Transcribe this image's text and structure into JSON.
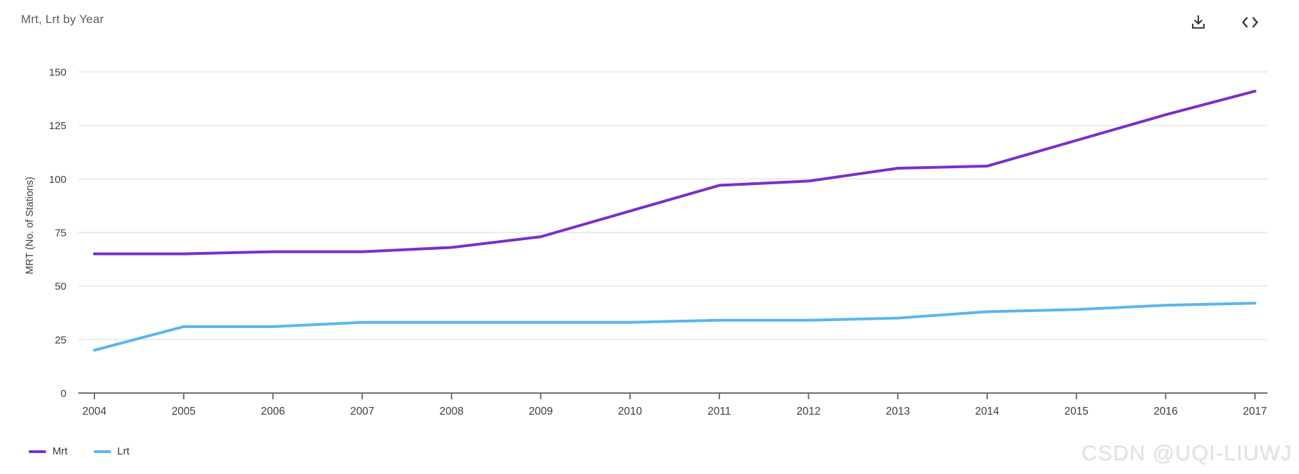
{
  "header": {
    "title": "Mrt, Lrt by Year",
    "download_icon": "download-icon",
    "embed_icon": "embed-code-icon"
  },
  "chart_data": {
    "type": "line",
    "title": "Mrt, Lrt by Year",
    "xlabel": "",
    "ylabel": "MRT (No. of Stations)",
    "x": [
      2004,
      2005,
      2006,
      2007,
      2008,
      2009,
      2010,
      2011,
      2012,
      2013,
      2014,
      2015,
      2016,
      2017
    ],
    "ylim": [
      0,
      150
    ],
    "yticks": [
      0,
      25,
      50,
      75,
      100,
      125,
      150
    ],
    "grid": true,
    "legend_position": "bottom-left",
    "series": [
      {
        "name": "Mrt",
        "color": "#7a30c5",
        "values": [
          65,
          65,
          66,
          66,
          68,
          73,
          85,
          97,
          99,
          105,
          106,
          118,
          130,
          141
        ]
      },
      {
        "name": "Lrt",
        "color": "#5bb5ef",
        "values": [
          20,
          31,
          31,
          33,
          33,
          33,
          33,
          34,
          34,
          35,
          38,
          39,
          41,
          42
        ]
      }
    ]
  },
  "style_colors": {
    "gridline": "#ebebeb",
    "axis": "#6f6f6f",
    "tick_text": "#3d3d3d"
  },
  "watermark": "CSDN @UQI-LIUWJ"
}
